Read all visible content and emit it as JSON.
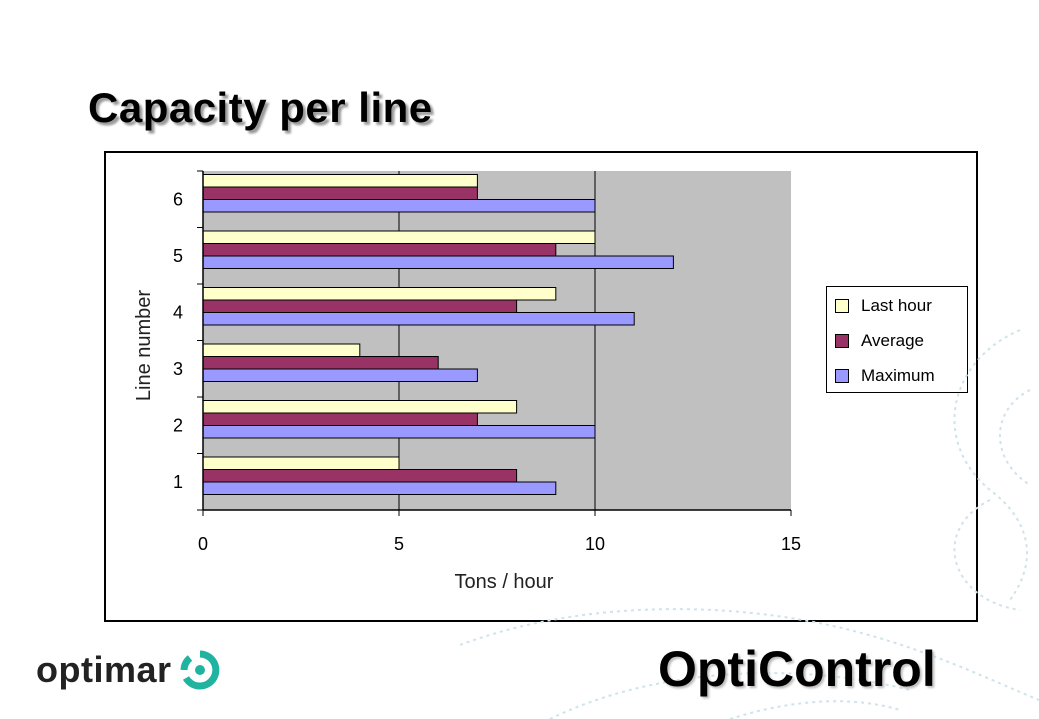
{
  "slide": {
    "title": "Capacity per line",
    "brand": "optimar",
    "product": "OptiControl"
  },
  "colors": {
    "plot_background": "#c0c0c0",
    "last_hour": "#ffffcc",
    "average": "#993366",
    "maximum": "#9999ff"
  },
  "chart_data": {
    "type": "bar",
    "orientation": "horizontal",
    "categories": [
      "1",
      "2",
      "3",
      "4",
      "5",
      "6"
    ],
    "series": [
      {
        "name": "Last hour",
        "color": "#ffffcc",
        "values": [
          5,
          8,
          4,
          9,
          10,
          7
        ]
      },
      {
        "name": "Average",
        "color": "#993366",
        "values": [
          8,
          7,
          6,
          8,
          9,
          7
        ]
      },
      {
        "name": "Maximum",
        "color": "#9999ff",
        "values": [
          9,
          10,
          7,
          11,
          12,
          10
        ]
      }
    ],
    "xlabel": "Tons / hour",
    "ylabel": "Line number",
    "xlim": [
      0,
      15
    ],
    "xticks": [
      "0",
      "5",
      "10",
      "15"
    ],
    "grid": "vertical",
    "legend": "right"
  }
}
